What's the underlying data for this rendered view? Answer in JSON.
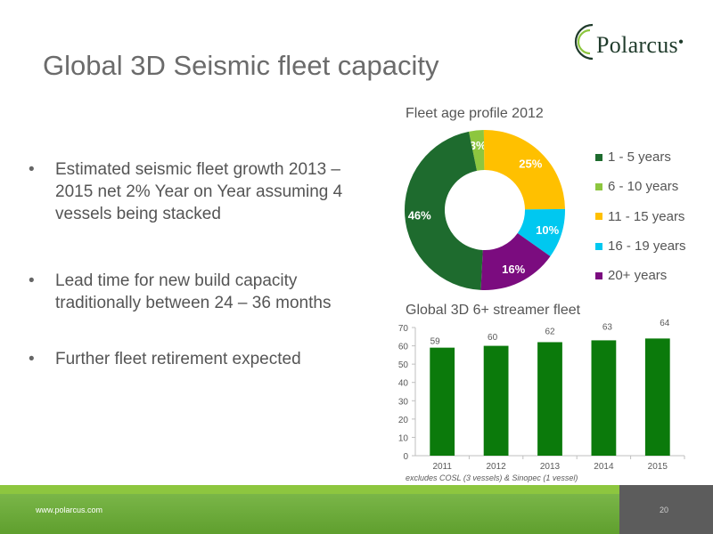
{
  "slide": {
    "title": "Global 3D Seismic fleet capacity",
    "bullets": [
      "Estimated seismic fleet growth 2013 – 2015 net 2% Year on Year assuming 4 vessels being stacked",
      "Lead time for new build capacity traditionally between 24 – 36 months",
      "Further fleet retirement expected"
    ],
    "logo_text": "Polarcus",
    "footer_link": "www.polarcus.com",
    "page_number": "20"
  },
  "colors": {
    "dark_green": "#1e6b2e",
    "light_green": "#8dc63f",
    "yellow": "#ffc000",
    "cyan": "#00c8f0",
    "purple": "#7b0c7f",
    "bar_green": "#0b7a0b"
  },
  "chart_data": [
    {
      "type": "pie",
      "variant": "donut",
      "title": "Fleet age profile 2012",
      "categories": [
        "1 - 5 years",
        "6 - 10 years",
        "11 - 15 years",
        "16 - 19 years",
        "20+ years"
      ],
      "values": [
        46,
        3,
        25,
        10,
        16
      ],
      "labels": [
        "46%",
        "3%",
        "25%",
        "10%",
        "16%"
      ],
      "colors": [
        "#1e6b2e",
        "#8dc63f",
        "#ffc000",
        "#00c8f0",
        "#7b0c7f"
      ],
      "legend_position": "right"
    },
    {
      "type": "bar",
      "title": "Global 3D 6+ streamer fleet",
      "categories": [
        "2011",
        "2012",
        "2013",
        "2014",
        "2015"
      ],
      "values": [
        59,
        60,
        62,
        63,
        64
      ],
      "ylim": [
        0,
        70
      ],
      "yticks": [
        0,
        10,
        20,
        30,
        40,
        50,
        60,
        70
      ],
      "grid": false,
      "note": "excludes COSL (3 vessels) & Sinopec (1 vessel)",
      "color": "#0b7a0b"
    }
  ]
}
